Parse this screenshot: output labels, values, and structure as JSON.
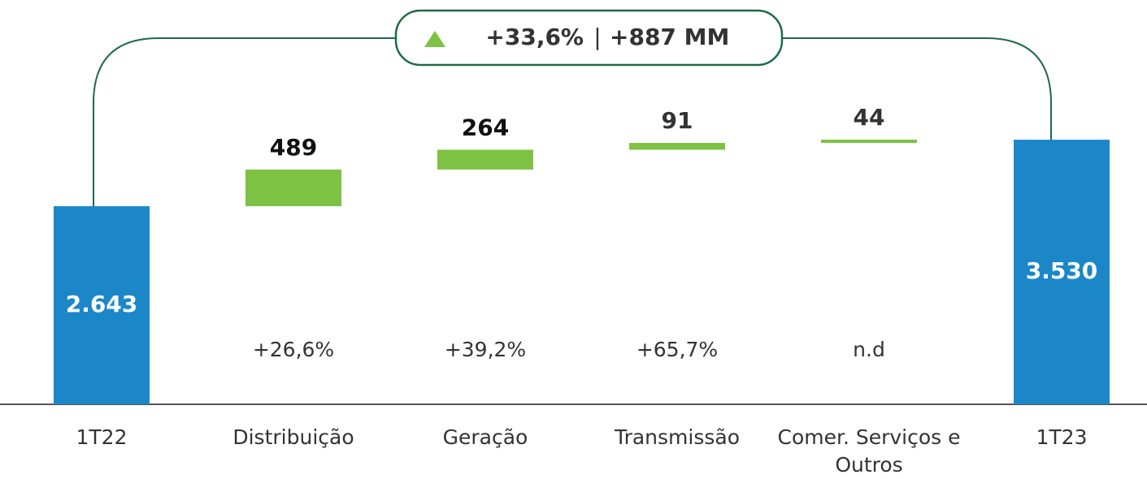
{
  "chart_data": {
    "type": "waterfall",
    "header": {
      "change_pct": "+33,6%",
      "separator": "|",
      "change_abs": "+887 MM"
    },
    "categories": [
      "1T22",
      "Distribuição",
      "Geração",
      "Transmissão",
      "Comer. Serviços e Outros",
      "1T23"
    ],
    "values": [
      2643,
      489,
      264,
      91,
      44,
      3530
    ],
    "value_labels": [
      "2.643",
      "489",
      "264",
      "91",
      "44",
      "3.530"
    ],
    "kinds": [
      "total",
      "delta",
      "delta",
      "delta",
      "delta",
      "total"
    ],
    "annotations": [
      null,
      "+26,6%",
      "+39,2%",
      "+65,7%",
      "n.d",
      null
    ],
    "colors": {
      "total": "#1b87c9",
      "delta": "#7dc242"
    }
  }
}
